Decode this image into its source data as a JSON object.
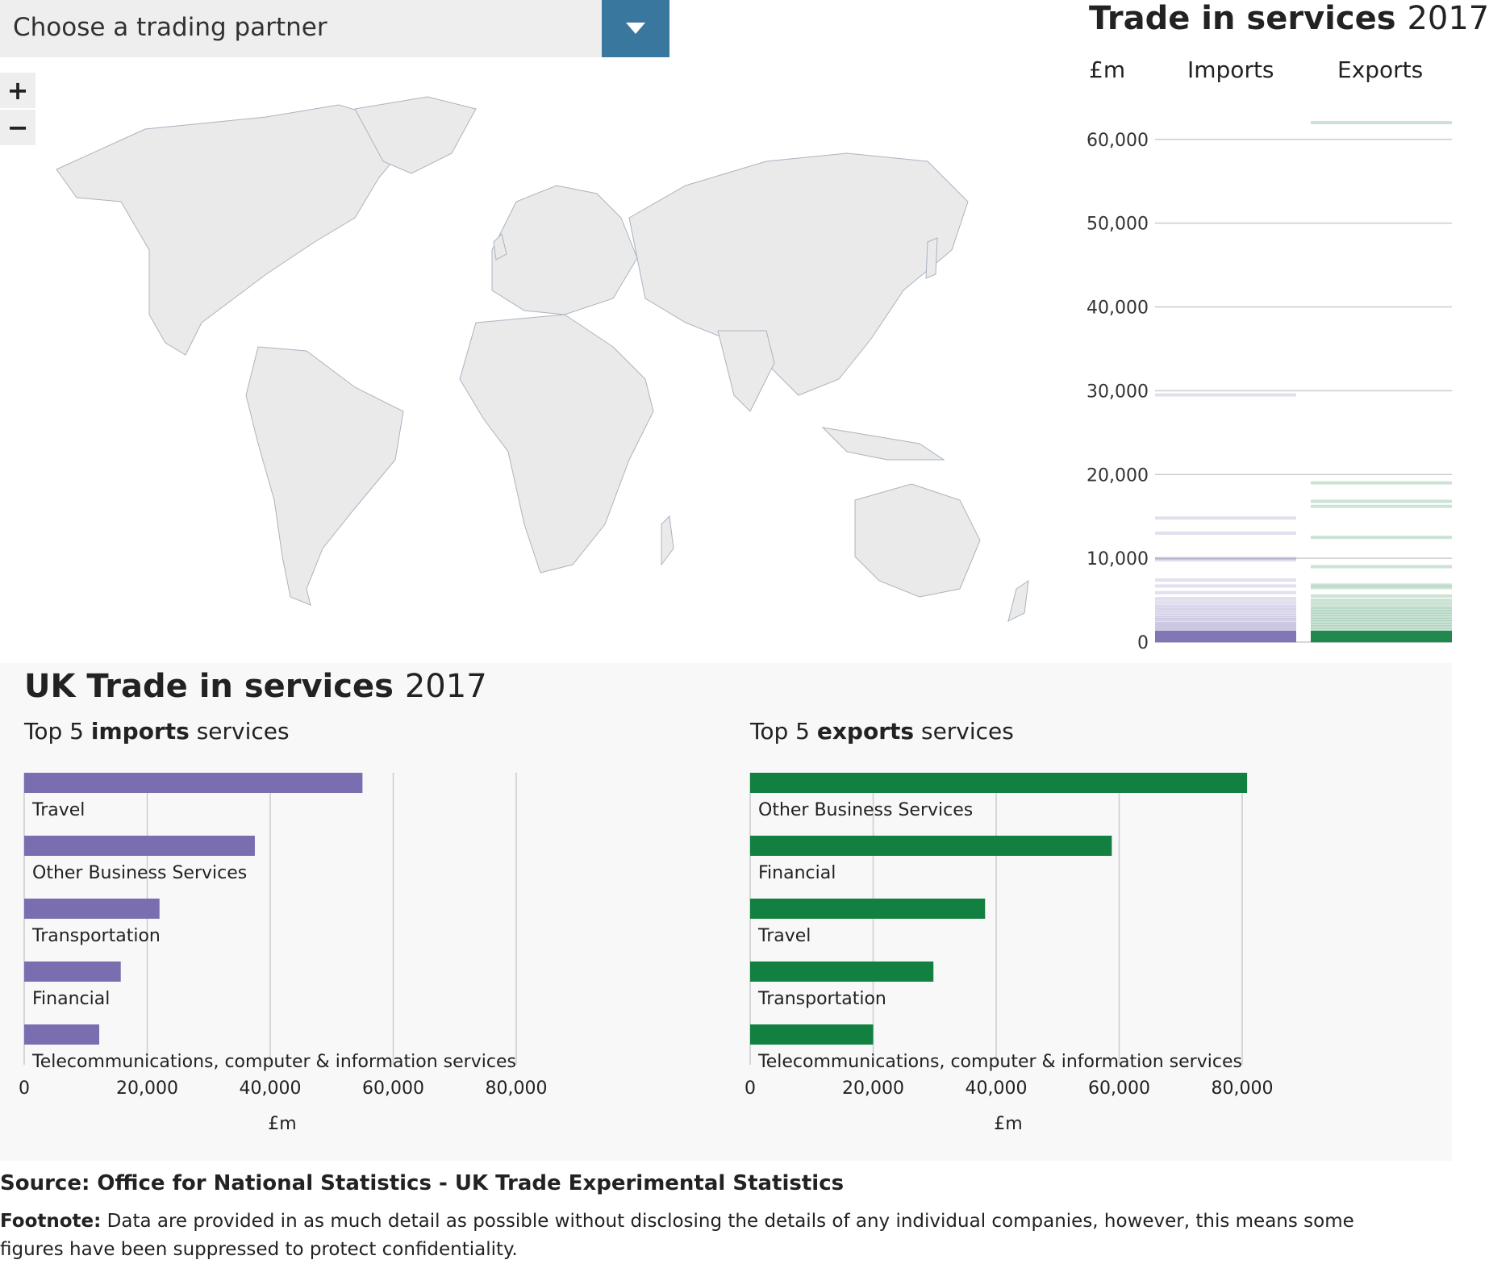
{
  "dropdown": {
    "placeholder": "Choose a trading partner"
  },
  "zoom": {
    "in_label": "+",
    "out_label": "−"
  },
  "stack_panel": {
    "title_bold": "Trade in services",
    "title_year": "2017",
    "unit": "£m",
    "imports_label": "Imports",
    "exports_label": "Exports",
    "colors": {
      "imports": "#7a6eb0",
      "exports": "#118040"
    }
  },
  "uk_panel": {
    "title_bold": "UK Trade in services",
    "title_year": "2017",
    "imports_sub": {
      "pre": "Top 5 ",
      "bold": "imports",
      "post": " services"
    },
    "exports_sub": {
      "pre": "Top 5 ",
      "bold": "exports",
      "post": " services"
    }
  },
  "source": "Source: Office for National Statistics - UK Trade Experimental Statistics",
  "footnote": {
    "label": "Footnote:",
    "text": " Data are provided in as much detail as possible without disclosing the details of any individual companies, however, this means some figures have been suppressed to protect confidentiality."
  },
  "chart_data": [
    {
      "type": "strip",
      "title": "Trade in services 2017",
      "ylabel": "£m",
      "ylim": [
        0,
        62000
      ],
      "yticks": [
        0,
        10000,
        20000,
        30000,
        40000,
        50000,
        60000
      ],
      "series": [
        {
          "name": "Imports",
          "color": "#7a6eb0",
          "values": [
            29500,
            14800,
            13000,
            10000,
            9800,
            7400,
            6700,
            5900,
            5200,
            4800,
            4400,
            4100,
            3800,
            3500,
            3200,
            2900,
            2700,
            2400,
            2200,
            2000,
            1800,
            1600,
            1400,
            1200,
            1000,
            800,
            600,
            400,
            200,
            100
          ]
        },
        {
          "name": "Exports",
          "color": "#118040",
          "values": [
            62000,
            19000,
            16800,
            16200,
            12500,
            9000,
            6800,
            6500,
            5500,
            5000,
            4600,
            4200,
            3900,
            3600,
            3300,
            3000,
            2700,
            2400,
            2100,
            1800,
            1500,
            1200,
            900,
            600,
            300,
            100
          ]
        }
      ]
    },
    {
      "type": "bar",
      "title": "Top 5 imports services",
      "xlabel": "£m",
      "xlim": [
        0,
        80000
      ],
      "xticks": [
        0,
        20000,
        40000,
        60000,
        80000
      ],
      "color": "#7a6eb0",
      "categories": [
        "Travel",
        "Other Business Services",
        "Transportation",
        "Financial",
        "Telecommunications, computer & information services"
      ],
      "values": [
        55000,
        37500,
        22000,
        15700,
        12200
      ]
    },
    {
      "type": "bar",
      "title": "Top 5 exports services",
      "xlabel": "£m",
      "xlim": [
        0,
        80000
      ],
      "xticks": [
        0,
        20000,
        40000,
        60000,
        80000
      ],
      "color": "#118040",
      "categories": [
        "Other Business Services",
        "Financial",
        "Travel",
        "Transportation",
        "Telecommunications, computer & information services"
      ],
      "values": [
        80800,
        58800,
        38200,
        29800,
        20000
      ]
    }
  ]
}
